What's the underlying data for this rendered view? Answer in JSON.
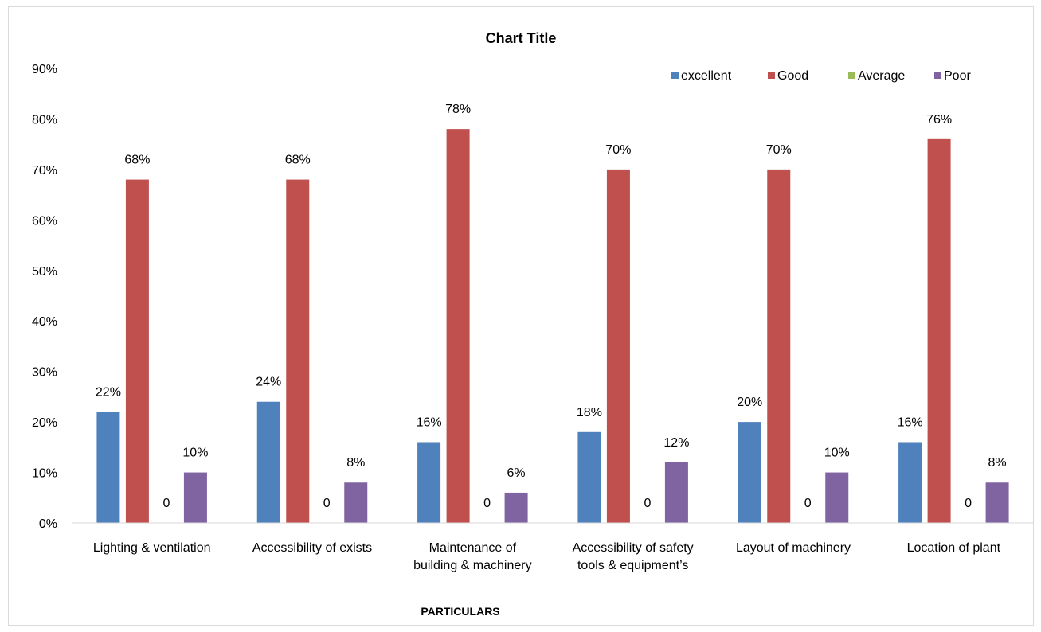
{
  "chart_data": {
    "type": "bar",
    "title": "Chart Title",
    "xlabel": "PARTICULARS",
    "ylabel": "",
    "ylim": [
      0,
      90
    ],
    "y_ticks": [
      "0%",
      "10%",
      "20%",
      "30%",
      "40%",
      "50%",
      "60%",
      "70%",
      "80%",
      "90%"
    ],
    "categories": [
      [
        "Lighting & ventilation"
      ],
      [
        "Accessibility of exists"
      ],
      [
        "Maintenance  of",
        "building & machinery"
      ],
      [
        "Accessibility of safety",
        "tools & equipment’s"
      ],
      [
        "Layout of machinery"
      ],
      [
        "Location of plant"
      ]
    ],
    "legend_position": "top-right",
    "grid": false,
    "series": [
      {
        "name": "excellent",
        "color": "#4F81BD",
        "values": [
          22,
          24,
          16,
          18,
          20,
          16
        ],
        "labels": [
          "22%",
          "24%",
          "16%",
          "18%",
          "20%",
          "16%"
        ]
      },
      {
        "name": "Good",
        "color": "#C0504D",
        "values": [
          68,
          68,
          78,
          70,
          70,
          76
        ],
        "labels": [
          "68%",
          "68%",
          "78%",
          "70%",
          "70%",
          "76%"
        ]
      },
      {
        "name": "Average",
        "color": "#9BBB59",
        "values": [
          0,
          0,
          0,
          0,
          0,
          0
        ],
        "labels": [
          "0",
          "0",
          "0",
          "0",
          "0",
          "0"
        ]
      },
      {
        "name": "Poor",
        "color": "#8064A2",
        "values": [
          10,
          8,
          6,
          12,
          10,
          8
        ],
        "labels": [
          "10%",
          "8%",
          "6%",
          "12%",
          "10%",
          "8%"
        ]
      }
    ]
  }
}
